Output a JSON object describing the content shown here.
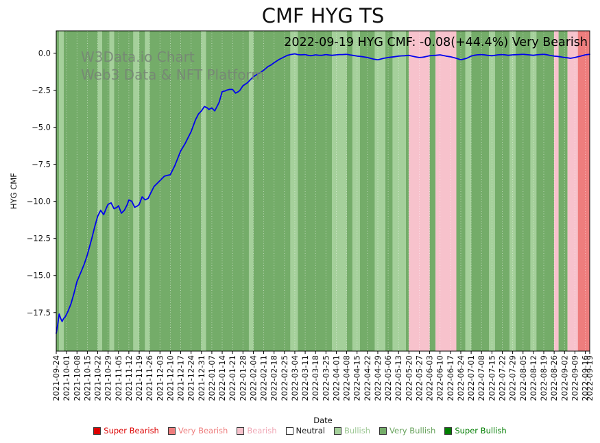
{
  "figure": {
    "title": "CMF HYG TS",
    "annotation": "2022-09-19 HYG CMF: -0.08(+44.4%) Very Bearish",
    "watermark_line1": "W3Data.io Chart",
    "watermark_line2": "Web3 Data & NFT Platform",
    "xlabel": "Date",
    "ylabel": "HYG CMF"
  },
  "legend": {
    "items": [
      {
        "label": "Super Bearish",
        "color": "#dc0000",
        "text_color": "#dc0000"
      },
      {
        "label": "Very Bearish",
        "color": "#ee7d7d",
        "text_color": "#ee7d7d"
      },
      {
        "label": "Bearish",
        "color": "#f7c2cc",
        "text_color": "#f0a8b6"
      },
      {
        "label": "Neutral",
        "color": "#ffffff",
        "text_color": "#1a1a1a"
      },
      {
        "label": "Bullish",
        "color": "#a5d09b",
        "text_color": "#9cc793"
      },
      {
        "label": "Very Bullish",
        "color": "#74ac69",
        "text_color": "#67a25c"
      },
      {
        "label": "Super Bullish",
        "color": "#007d00",
        "text_color": "#007d00"
      }
    ]
  },
  "chart_data": {
    "type": "line",
    "title": "CMF HYG TS",
    "xlabel": "Date",
    "ylabel": "HYG CMF",
    "ylim": [
      -20.1,
      1.5
    ],
    "total_days": 360,
    "x_start_date": "2021-09-24",
    "x_end_date": "2022-09-19",
    "grid": "vertical dotted weekly gridlines",
    "legend_position": "bottom center",
    "line_color": "#0000ee",
    "x_tick_labels": [
      "2021-09-24",
      "2021-10-01",
      "2021-10-08",
      "2021-10-15",
      "2021-10-22",
      "2021-10-29",
      "2021-11-05",
      "2021-11-12",
      "2021-11-19",
      "2021-11-26",
      "2021-12-03",
      "2021-12-10",
      "2021-12-17",
      "2021-12-24",
      "2021-12-31",
      "2022-01-07",
      "2022-01-14",
      "2022-01-21",
      "2022-01-28",
      "2022-02-04",
      "2022-02-11",
      "2022-02-18",
      "2022-02-25",
      "2022-03-04",
      "2022-03-11",
      "2022-03-18",
      "2022-03-25",
      "2022-04-01",
      "2022-04-08",
      "2022-04-15",
      "2022-04-22",
      "2022-04-29",
      "2022-05-06",
      "2022-05-13",
      "2022-05-20",
      "2022-05-27",
      "2022-06-03",
      "2022-06-10",
      "2022-06-17",
      "2022-06-24",
      "2022-07-01",
      "2022-07-08",
      "2022-07-15",
      "2022-07-22",
      "2022-07-29",
      "2022-08-05",
      "2022-08-12",
      "2022-08-19",
      "2022-08-26",
      "2022-09-02",
      "2022-09-09",
      "2022-09-16",
      "2022-09-19"
    ],
    "x_tick_days": [
      0,
      7,
      14,
      21,
      28,
      35,
      42,
      49,
      56,
      63,
      70,
      77,
      84,
      91,
      98,
      105,
      112,
      119,
      126,
      133,
      140,
      147,
      154,
      161,
      168,
      175,
      182,
      189,
      196,
      203,
      210,
      217,
      224,
      231,
      238,
      245,
      252,
      259,
      266,
      273,
      280,
      287,
      294,
      301,
      308,
      315,
      322,
      329,
      336,
      343,
      350,
      357,
      360
    ],
    "y_ticks": [
      0,
      -2.5,
      -5,
      -7.5,
      -10,
      -12.5,
      -15,
      -17.5
    ],
    "y_tick_labels": [
      "0.0",
      "−2.5",
      "−5.0",
      "−7.5",
      "−10.0",
      "−12.5",
      "−15.0",
      "−17.5"
    ],
    "sentiment_colors": {
      "super_bearish": "#dc0000",
      "very_bearish": "#ee7d7d",
      "bearish": "#f7c2cc",
      "neutral": "#ffffff",
      "bullish": "#a5d09b",
      "very_bullish": "#74ac69",
      "super_bullish": "#007d00"
    },
    "background_bands": [
      {
        "start_day": 0,
        "end_day": 2,
        "sentiment": "very_bullish"
      },
      {
        "start_day": 2,
        "end_day": 5,
        "sentiment": "bullish"
      },
      {
        "start_day": 5,
        "end_day": 28,
        "sentiment": "very_bullish"
      },
      {
        "start_day": 28,
        "end_day": 31,
        "sentiment": "bullish"
      },
      {
        "start_day": 31,
        "end_day": 36,
        "sentiment": "very_bullish"
      },
      {
        "start_day": 36,
        "end_day": 39,
        "sentiment": "bullish"
      },
      {
        "start_day": 39,
        "end_day": 52,
        "sentiment": "very_bullish"
      },
      {
        "start_day": 52,
        "end_day": 56,
        "sentiment": "bullish"
      },
      {
        "start_day": 56,
        "end_day": 60,
        "sentiment": "very_bullish"
      },
      {
        "start_day": 60,
        "end_day": 63,
        "sentiment": "bullish"
      },
      {
        "start_day": 63,
        "end_day": 98,
        "sentiment": "very_bullish"
      },
      {
        "start_day": 98,
        "end_day": 101,
        "sentiment": "bullish"
      },
      {
        "start_day": 101,
        "end_day": 130,
        "sentiment": "very_bullish"
      },
      {
        "start_day": 130,
        "end_day": 133,
        "sentiment": "bullish"
      },
      {
        "start_day": 133,
        "end_day": 158,
        "sentiment": "very_bullish"
      },
      {
        "start_day": 158,
        "end_day": 163,
        "sentiment": "bullish"
      },
      {
        "start_day": 163,
        "end_day": 186,
        "sentiment": "very_bullish"
      },
      {
        "start_day": 186,
        "end_day": 196,
        "sentiment": "bullish"
      },
      {
        "start_day": 196,
        "end_day": 200,
        "sentiment": "very_bullish"
      },
      {
        "start_day": 200,
        "end_day": 205,
        "sentiment": "bullish"
      },
      {
        "start_day": 205,
        "end_day": 215,
        "sentiment": "very_bullish"
      },
      {
        "start_day": 215,
        "end_day": 222,
        "sentiment": "bullish"
      },
      {
        "start_day": 222,
        "end_day": 227,
        "sentiment": "very_bullish"
      },
      {
        "start_day": 227,
        "end_day": 236,
        "sentiment": "bullish"
      },
      {
        "start_day": 236,
        "end_day": 238,
        "sentiment": "very_bullish"
      },
      {
        "start_day": 238,
        "end_day": 252,
        "sentiment": "bearish"
      },
      {
        "start_day": 252,
        "end_day": 256,
        "sentiment": "very_bullish"
      },
      {
        "start_day": 256,
        "end_day": 270,
        "sentiment": "bearish"
      },
      {
        "start_day": 270,
        "end_day": 276,
        "sentiment": "very_bullish"
      },
      {
        "start_day": 276,
        "end_day": 280,
        "sentiment": "bullish"
      },
      {
        "start_day": 280,
        "end_day": 292,
        "sentiment": "very_bullish"
      },
      {
        "start_day": 292,
        "end_day": 296,
        "sentiment": "bullish"
      },
      {
        "start_day": 296,
        "end_day": 306,
        "sentiment": "very_bullish"
      },
      {
        "start_day": 306,
        "end_day": 310,
        "sentiment": "bullish"
      },
      {
        "start_day": 310,
        "end_day": 320,
        "sentiment": "very_bullish"
      },
      {
        "start_day": 320,
        "end_day": 324,
        "sentiment": "bullish"
      },
      {
        "start_day": 324,
        "end_day": 336,
        "sentiment": "very_bullish"
      },
      {
        "start_day": 336,
        "end_day": 339,
        "sentiment": "bearish"
      },
      {
        "start_day": 339,
        "end_day": 345,
        "sentiment": "very_bullish"
      },
      {
        "start_day": 345,
        "end_day": 352,
        "sentiment": "bearish"
      },
      {
        "start_day": 352,
        "end_day": 360,
        "sentiment": "very_bearish"
      }
    ],
    "series": [
      {
        "name": "HYG CMF",
        "points": [
          [
            0,
            -18.9
          ],
          [
            1,
            -18.3
          ],
          [
            2,
            -17.6
          ],
          [
            3,
            -17.9
          ],
          [
            4,
            -18.1
          ],
          [
            5,
            -17.9
          ],
          [
            6,
            -17.8
          ],
          [
            8,
            -17.4
          ],
          [
            10,
            -16.9
          ],
          [
            12,
            -16.2
          ],
          [
            14,
            -15.4
          ],
          [
            17,
            -14.7
          ],
          [
            19,
            -14.2
          ],
          [
            21,
            -13.6
          ],
          [
            24,
            -12.5
          ],
          [
            26,
            -11.7
          ],
          [
            28,
            -11.0
          ],
          [
            30,
            -10.6
          ],
          [
            32,
            -10.9
          ],
          [
            34,
            -10.4
          ],
          [
            35,
            -10.2
          ],
          [
            37,
            -10.1
          ],
          [
            39,
            -10.5
          ],
          [
            41,
            -10.4
          ],
          [
            42,
            -10.3
          ],
          [
            44,
            -10.8
          ],
          [
            46,
            -10.6
          ],
          [
            48,
            -10.2
          ],
          [
            49,
            -9.9
          ],
          [
            51,
            -10.0
          ],
          [
            53,
            -10.4
          ],
          [
            55,
            -10.3
          ],
          [
            56,
            -10.2
          ],
          [
            58,
            -9.7
          ],
          [
            60,
            -9.9
          ],
          [
            62,
            -9.8
          ],
          [
            63,
            -9.6
          ],
          [
            66,
            -9.0
          ],
          [
            68,
            -8.8
          ],
          [
            70,
            -8.6
          ],
          [
            73,
            -8.3
          ],
          [
            75,
            -8.25
          ],
          [
            77,
            -8.2
          ],
          [
            80,
            -7.6
          ],
          [
            82,
            -7.1
          ],
          [
            84,
            -6.6
          ],
          [
            87,
            -6.1
          ],
          [
            89,
            -5.7
          ],
          [
            91,
            -5.3
          ],
          [
            94,
            -4.5
          ],
          [
            96,
            -4.1
          ],
          [
            98,
            -3.9
          ],
          [
            100,
            -3.6
          ],
          [
            102,
            -3.7
          ],
          [
            103,
            -3.8
          ],
          [
            105,
            -3.7
          ],
          [
            107,
            -3.9
          ],
          [
            109,
            -3.5
          ],
          [
            110,
            -3.3
          ],
          [
            112,
            -2.6
          ],
          [
            114,
            -2.55
          ],
          [
            115,
            -2.5
          ],
          [
            117,
            -2.45
          ],
          [
            119,
            -2.45
          ],
          [
            121,
            -2.7
          ],
          [
            123,
            -2.6
          ],
          [
            124,
            -2.5
          ],
          [
            126,
            -2.2
          ],
          [
            129,
            -2.0
          ],
          [
            131,
            -1.8
          ],
          [
            133,
            -1.6
          ],
          [
            136,
            -1.4
          ],
          [
            138,
            -1.3
          ],
          [
            140,
            -1.15
          ],
          [
            143,
            -0.9
          ],
          [
            145,
            -0.8
          ],
          [
            147,
            -0.65
          ],
          [
            150,
            -0.45
          ],
          [
            152,
            -0.35
          ],
          [
            154,
            -0.25
          ],
          [
            156,
            -0.15
          ],
          [
            158,
            -0.1
          ],
          [
            161,
            -0.05
          ],
          [
            163,
            -0.1
          ],
          [
            165,
            -0.12
          ],
          [
            168,
            -0.1
          ],
          [
            170,
            -0.15
          ],
          [
            172,
            -0.18
          ],
          [
            175,
            -0.12
          ],
          [
            177,
            -0.14
          ],
          [
            179,
            -0.15
          ],
          [
            182,
            -0.1
          ],
          [
            184,
            -0.13
          ],
          [
            186,
            -0.15
          ],
          [
            189,
            -0.12
          ],
          [
            191,
            -0.1
          ],
          [
            193,
            -0.1
          ],
          [
            196,
            -0.08
          ],
          [
            198,
            -0.12
          ],
          [
            200,
            -0.15
          ],
          [
            203,
            -0.2
          ],
          [
            205,
            -0.22
          ],
          [
            207,
            -0.25
          ],
          [
            210,
            -0.3
          ],
          [
            212,
            -0.35
          ],
          [
            214,
            -0.4
          ],
          [
            217,
            -0.45
          ],
          [
            219,
            -0.4
          ],
          [
            221,
            -0.35
          ],
          [
            224,
            -0.3
          ],
          [
            226,
            -0.27
          ],
          [
            228,
            -0.25
          ],
          [
            231,
            -0.2
          ],
          [
            233,
            -0.19
          ],
          [
            235,
            -0.18
          ],
          [
            238,
            -0.15
          ],
          [
            240,
            -0.2
          ],
          [
            242,
            -0.25
          ],
          [
            245,
            -0.3
          ],
          [
            247,
            -0.28
          ],
          [
            249,
            -0.25
          ],
          [
            252,
            -0.18
          ],
          [
            254,
            -0.16
          ],
          [
            256,
            -0.15
          ],
          [
            259,
            -0.12
          ],
          [
            261,
            -0.16
          ],
          [
            263,
            -0.2
          ],
          [
            266,
            -0.25
          ],
          [
            268,
            -0.3
          ],
          [
            270,
            -0.35
          ],
          [
            273,
            -0.45
          ],
          [
            275,
            -0.4
          ],
          [
            277,
            -0.35
          ],
          [
            280,
            -0.2
          ],
          [
            282,
            -0.15
          ],
          [
            284,
            -0.12
          ],
          [
            287,
            -0.1
          ],
          [
            289,
            -0.12
          ],
          [
            291,
            -0.15
          ],
          [
            294,
            -0.18
          ],
          [
            296,
            -0.15
          ],
          [
            298,
            -0.12
          ],
          [
            301,
            -0.1
          ],
          [
            303,
            -0.12
          ],
          [
            305,
            -0.15
          ],
          [
            308,
            -0.12
          ],
          [
            310,
            -0.11
          ],
          [
            312,
            -0.1
          ],
          [
            315,
            -0.08
          ],
          [
            317,
            -0.1
          ],
          [
            319,
            -0.12
          ],
          [
            322,
            -0.15
          ],
          [
            324,
            -0.12
          ],
          [
            326,
            -0.1
          ],
          [
            329,
            -0.08
          ],
          [
            331,
            -0.11
          ],
          [
            333,
            -0.15
          ],
          [
            336,
            -0.2
          ],
          [
            338,
            -0.22
          ],
          [
            340,
            -0.25
          ],
          [
            343,
            -0.3
          ],
          [
            345,
            -0.32
          ],
          [
            347,
            -0.35
          ],
          [
            350,
            -0.3
          ],
          [
            352,
            -0.25
          ],
          [
            354,
            -0.2
          ],
          [
            357,
            -0.12
          ],
          [
            360,
            -0.08
          ]
        ]
      }
    ]
  }
}
